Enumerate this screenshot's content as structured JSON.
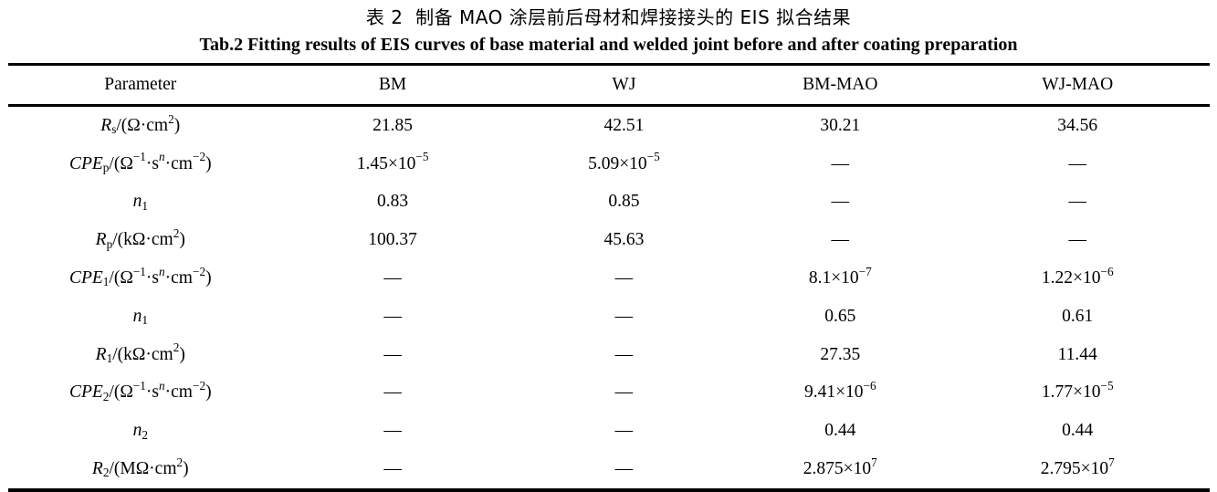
{
  "titles": {
    "chinese": "表 2  制备 MAO 涂层前后母材和焊接接头的 EIS 拟合结果",
    "english": "Tab.2 Fitting results of EIS curves of base material and welded joint before and after coating preparation"
  },
  "colors": {
    "text": "#000000",
    "background": "#ffffff",
    "rule": "#000000"
  },
  "table": {
    "columns": [
      "Parameter",
      "BM",
      "WJ",
      "BM-MAO",
      "WJ-MAO"
    ],
    "missing_value_symbol": "—",
    "rows": [
      {
        "parameter": [
          [
            "R",
            "i"
          ],
          [
            "s",
            "sub"
          ],
          [
            "/(Ω·cm",
            ""
          ],
          [
            "2",
            "sup"
          ],
          [
            ")",
            ""
          ]
        ],
        "values": [
          "21.85",
          "42.51",
          "30.21",
          "34.56"
        ]
      },
      {
        "parameter": [
          [
            "CPE",
            "i"
          ],
          [
            "p",
            "sub"
          ],
          [
            "/(Ω",
            ""
          ],
          [
            "−1",
            "sup"
          ],
          [
            "·s",
            ""
          ],
          [
            "n",
            "sup i"
          ],
          [
            "·cm",
            ""
          ],
          [
            "−2",
            "sup"
          ],
          [
            ")",
            ""
          ]
        ],
        "values": [
          [
            [
              "1.45×10",
              ""
            ],
            [
              "−5",
              "sup"
            ]
          ],
          [
            [
              "5.09×10",
              ""
            ],
            [
              "−5",
              "sup"
            ]
          ],
          "—",
          "—"
        ]
      },
      {
        "parameter": [
          [
            "n",
            "i"
          ],
          [
            "1",
            "sub"
          ]
        ],
        "values": [
          "0.83",
          "0.85",
          "—",
          "—"
        ]
      },
      {
        "parameter": [
          [
            "R",
            "i"
          ],
          [
            "p",
            "sub"
          ],
          [
            "/(kΩ·cm",
            ""
          ],
          [
            "2",
            "sup"
          ],
          [
            ")",
            ""
          ]
        ],
        "values": [
          "100.37",
          "45.63",
          "—",
          "—"
        ]
      },
      {
        "parameter": [
          [
            "CPE",
            "i"
          ],
          [
            "1",
            "sub"
          ],
          [
            "/(Ω",
            ""
          ],
          [
            "−1",
            "sup"
          ],
          [
            "·s",
            ""
          ],
          [
            "n",
            "sup i"
          ],
          [
            "·cm",
            ""
          ],
          [
            "−2",
            "sup"
          ],
          [
            ")",
            ""
          ]
        ],
        "values": [
          "—",
          "—",
          [
            [
              "8.1×10",
              ""
            ],
            [
              "−7",
              "sup"
            ]
          ],
          [
            [
              "1.22×10",
              ""
            ],
            [
              "−6",
              "sup"
            ]
          ]
        ]
      },
      {
        "parameter": [
          [
            "n",
            "i"
          ],
          [
            "1",
            "sub"
          ]
        ],
        "values": [
          "—",
          "—",
          "0.65",
          "0.61"
        ]
      },
      {
        "parameter": [
          [
            "R",
            "i"
          ],
          [
            "1",
            "sub"
          ],
          [
            "/(kΩ·cm",
            ""
          ],
          [
            "2",
            "sup"
          ],
          [
            ")",
            ""
          ]
        ],
        "values": [
          "—",
          "—",
          "27.35",
          "11.44"
        ]
      },
      {
        "parameter": [
          [
            "CPE",
            "i"
          ],
          [
            "2",
            "sub"
          ],
          [
            "/(Ω",
            ""
          ],
          [
            "−1",
            "sup"
          ],
          [
            "·s",
            ""
          ],
          [
            "n",
            "sup i"
          ],
          [
            "·cm",
            ""
          ],
          [
            "−2",
            "sup"
          ],
          [
            ")",
            ""
          ]
        ],
        "values": [
          "—",
          "—",
          [
            [
              "9.41×10",
              ""
            ],
            [
              "−6",
              "sup"
            ]
          ],
          [
            [
              "1.77×10",
              ""
            ],
            [
              "−5",
              "sup"
            ]
          ]
        ]
      },
      {
        "parameter": [
          [
            "n",
            "i"
          ],
          [
            "2",
            "sub"
          ]
        ],
        "values": [
          "—",
          "—",
          "0.44",
          "0.44"
        ]
      },
      {
        "parameter": [
          [
            "R",
            "i"
          ],
          [
            "2",
            "sub"
          ],
          [
            "/(MΩ·cm",
            ""
          ],
          [
            "2",
            "sup"
          ],
          [
            ")",
            ""
          ]
        ],
        "values": [
          "—",
          "—",
          [
            [
              "2.875×10",
              ""
            ],
            [
              "7",
              "sup"
            ]
          ],
          [
            [
              "2.795×10",
              ""
            ],
            [
              "7",
              "sup"
            ]
          ]
        ]
      }
    ]
  }
}
